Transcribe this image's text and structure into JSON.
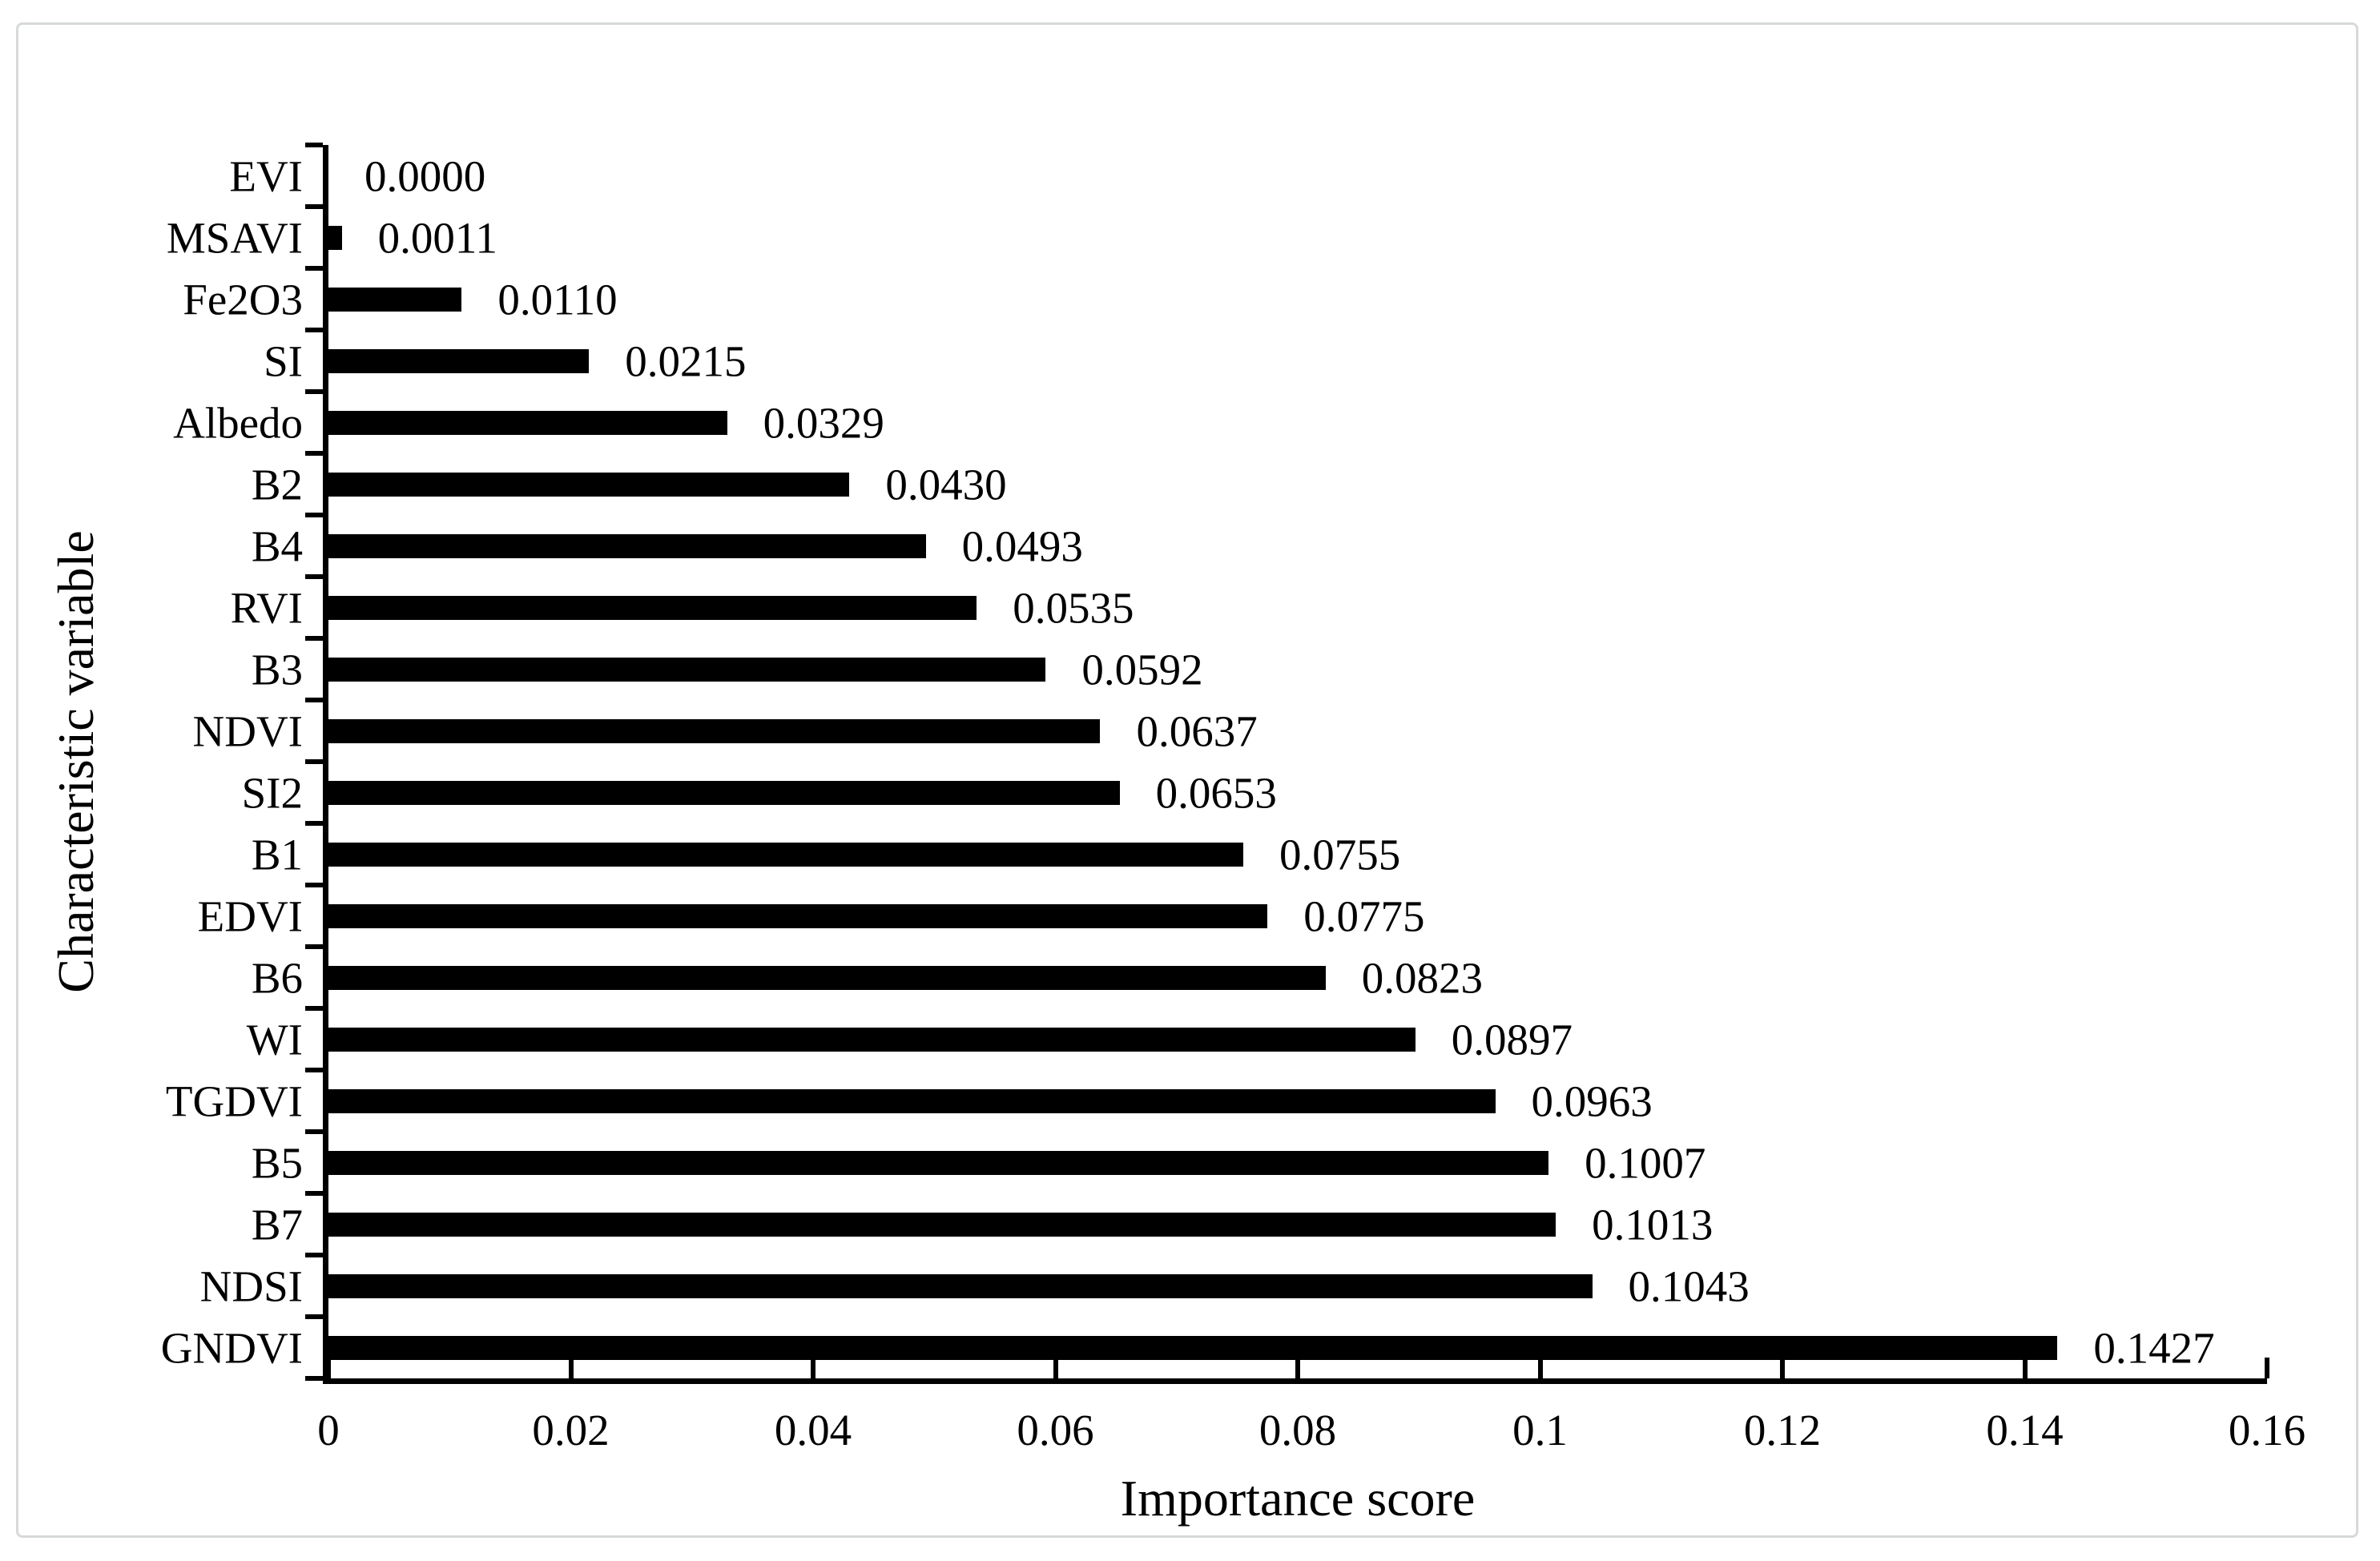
{
  "figure": {
    "background": "#ffffff",
    "frame_border_color": "#d6d9da"
  },
  "chart_data": {
    "type": "bar",
    "orientation": "horizontal",
    "title": "",
    "xlabel": "Importance score",
    "ylabel": "Characteristic variable",
    "categories": [
      "EVI",
      "MSAVI",
      "Fe2O3",
      "SI",
      "Albedo",
      "B2",
      "B4",
      "RVI",
      "B3",
      "NDVI",
      "SI2",
      "B1",
      "EDVI",
      "B6",
      "WI",
      "TGDVI",
      "B5",
      "B7",
      "NDSI",
      "GNDVI"
    ],
    "values": [
      0.0,
      0.0011,
      0.011,
      0.0215,
      0.0329,
      0.043,
      0.0493,
      0.0535,
      0.0592,
      0.0637,
      0.0653,
      0.0755,
      0.0775,
      0.0823,
      0.0897,
      0.0963,
      0.1007,
      0.1013,
      0.1043,
      0.1427
    ],
    "value_labels": [
      "0.0000",
      "0.0011",
      "0.0110",
      "0.0215",
      "0.0329",
      "0.0430",
      "0.0493",
      "0.0535",
      "0.0592",
      "0.0637",
      "0.0653",
      "0.0755",
      "0.0775",
      "0.0823",
      "0.0897",
      "0.0963",
      "0.1007",
      "0.1013",
      "0.1043",
      "0.1427"
    ],
    "xlim": [
      0,
      0.16
    ],
    "x_tick_labels": [
      "0",
      "0.02",
      "0.04",
      "0.06",
      "0.08",
      "0.1",
      "0.12",
      "0.14",
      "0.16"
    ],
    "bar_color": "#000000",
    "grid": false,
    "legend": null
  }
}
